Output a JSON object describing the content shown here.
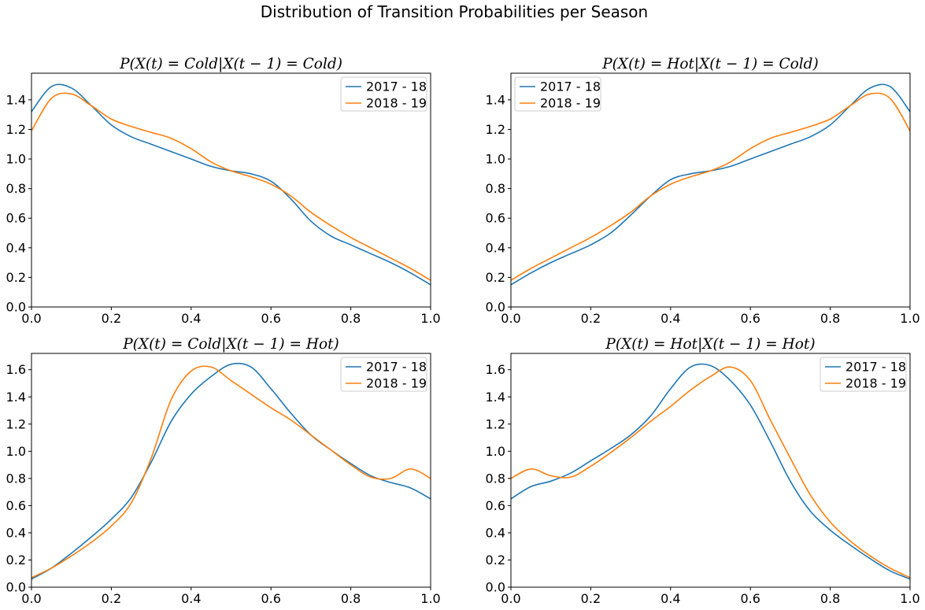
{
  "figure": {
    "title": "Distribution of Transition Probabilities per Season"
  },
  "colors": {
    "series_1": "#1f77b4",
    "series_2": "#ff7f0e"
  },
  "chart_data": [
    {
      "type": "line",
      "title": "P(X(t) = Cold|X(t − 1) = Cold)",
      "xlim": [
        0,
        1
      ],
      "ylim": [
        0,
        1.58
      ],
      "xticks": [
        "0.0",
        "0.2",
        "0.4",
        "0.6",
        "0.8",
        "1.0"
      ],
      "yticks": [
        "0.0",
        "0.2",
        "0.4",
        "0.6",
        "0.8",
        "1.0",
        "1.2",
        "1.4"
      ],
      "legend_position": "upper right",
      "x": [
        0,
        0.05,
        0.1,
        0.15,
        0.2,
        0.25,
        0.3,
        0.35,
        0.4,
        0.45,
        0.5,
        0.55,
        0.6,
        0.65,
        0.7,
        0.75,
        0.8,
        0.85,
        0.9,
        0.95,
        1.0
      ],
      "series": [
        {
          "name": "2017 - 18",
          "values": [
            1.32,
            1.49,
            1.48,
            1.36,
            1.23,
            1.15,
            1.1,
            1.05,
            1.0,
            0.95,
            0.92,
            0.9,
            0.85,
            0.73,
            0.58,
            0.48,
            0.42,
            0.36,
            0.3,
            0.23,
            0.15
          ]
        },
        {
          "name": "2018 - 19",
          "values": [
            1.19,
            1.41,
            1.44,
            1.36,
            1.27,
            1.22,
            1.18,
            1.14,
            1.07,
            0.98,
            0.92,
            0.88,
            0.83,
            0.75,
            0.64,
            0.55,
            0.47,
            0.4,
            0.33,
            0.26,
            0.18
          ]
        }
      ]
    },
    {
      "type": "line",
      "title": "P(X(t) = Hot|X(t − 1) = Cold)",
      "xlim": [
        0,
        1
      ],
      "ylim": [
        0,
        1.58
      ],
      "xticks": [
        "0.0",
        "0.2",
        "0.4",
        "0.6",
        "0.8",
        "1.0"
      ],
      "yticks": [
        "0.0",
        "0.2",
        "0.4",
        "0.6",
        "0.8",
        "1.0",
        "1.2",
        "1.4"
      ],
      "legend_position": "upper left",
      "x": [
        0,
        0.05,
        0.1,
        0.15,
        0.2,
        0.25,
        0.3,
        0.35,
        0.4,
        0.45,
        0.5,
        0.55,
        0.6,
        0.65,
        0.7,
        0.75,
        0.8,
        0.85,
        0.9,
        0.95,
        1.0
      ],
      "series": [
        {
          "name": "2017 - 18",
          "values": [
            0.15,
            0.23,
            0.3,
            0.36,
            0.42,
            0.5,
            0.62,
            0.75,
            0.86,
            0.9,
            0.92,
            0.95,
            1.0,
            1.05,
            1.1,
            1.15,
            1.23,
            1.36,
            1.48,
            1.49,
            1.32
          ]
        },
        {
          "name": "2018 - 19",
          "values": [
            0.18,
            0.26,
            0.33,
            0.4,
            0.47,
            0.55,
            0.64,
            0.75,
            0.83,
            0.88,
            0.92,
            0.98,
            1.07,
            1.14,
            1.18,
            1.22,
            1.27,
            1.36,
            1.44,
            1.41,
            1.19
          ]
        }
      ]
    },
    {
      "type": "line",
      "title": "P(X(t) = Cold|X(t − 1) = Hot)",
      "xlim": [
        0,
        1
      ],
      "ylim": [
        0,
        1.72
      ],
      "xticks": [
        "0.0",
        "0.2",
        "0.4",
        "0.6",
        "0.8",
        "1.0"
      ],
      "yticks": [
        "0.0",
        "0.2",
        "0.4",
        "0.6",
        "0.8",
        "1.0",
        "1.2",
        "1.4",
        "1.6"
      ],
      "legend_position": "upper right",
      "x": [
        0,
        0.05,
        0.1,
        0.15,
        0.2,
        0.25,
        0.3,
        0.35,
        0.4,
        0.45,
        0.5,
        0.55,
        0.6,
        0.65,
        0.7,
        0.75,
        0.8,
        0.85,
        0.9,
        0.95,
        1.0
      ],
      "series": [
        {
          "name": "2017 - 18",
          "values": [
            0.06,
            0.14,
            0.25,
            0.37,
            0.5,
            0.66,
            0.92,
            1.22,
            1.42,
            1.55,
            1.64,
            1.62,
            1.46,
            1.28,
            1.12,
            1.01,
            0.91,
            0.82,
            0.77,
            0.73,
            0.65
          ]
        },
        {
          "name": "2018 - 19",
          "values": [
            0.07,
            0.14,
            0.23,
            0.33,
            0.45,
            0.62,
            0.95,
            1.38,
            1.59,
            1.62,
            1.52,
            1.42,
            1.32,
            1.23,
            1.12,
            1.01,
            0.9,
            0.81,
            0.8,
            0.87,
            0.8
          ]
        }
      ]
    },
    {
      "type": "line",
      "title": "P(X(t) = Hot|X(t − 1) = Hot)",
      "xlim": [
        0,
        1
      ],
      "ylim": [
        0,
        1.72
      ],
      "xticks": [
        "0.0",
        "0.2",
        "0.4",
        "0.6",
        "0.8",
        "1.0"
      ],
      "yticks": [
        "0.0",
        "0.2",
        "0.4",
        "0.6",
        "0.8",
        "1.0",
        "1.2",
        "1.4",
        "1.6"
      ],
      "legend_position": "upper right",
      "x": [
        0,
        0.05,
        0.1,
        0.15,
        0.2,
        0.25,
        0.3,
        0.35,
        0.4,
        0.45,
        0.5,
        0.55,
        0.6,
        0.65,
        0.7,
        0.75,
        0.8,
        0.85,
        0.9,
        0.95,
        1.0
      ],
      "series": [
        {
          "name": "2017 - 18",
          "values": [
            0.65,
            0.74,
            0.78,
            0.84,
            0.93,
            1.02,
            1.12,
            1.26,
            1.46,
            1.62,
            1.63,
            1.52,
            1.34,
            1.07,
            0.78,
            0.56,
            0.42,
            0.31,
            0.21,
            0.12,
            0.06
          ]
        },
        {
          "name": "2018 - 19",
          "values": [
            0.8,
            0.87,
            0.82,
            0.81,
            0.89,
            0.99,
            1.1,
            1.22,
            1.33,
            1.45,
            1.55,
            1.62,
            1.52,
            1.23,
            0.95,
            0.68,
            0.48,
            0.34,
            0.23,
            0.14,
            0.07
          ]
        }
      ]
    }
  ]
}
